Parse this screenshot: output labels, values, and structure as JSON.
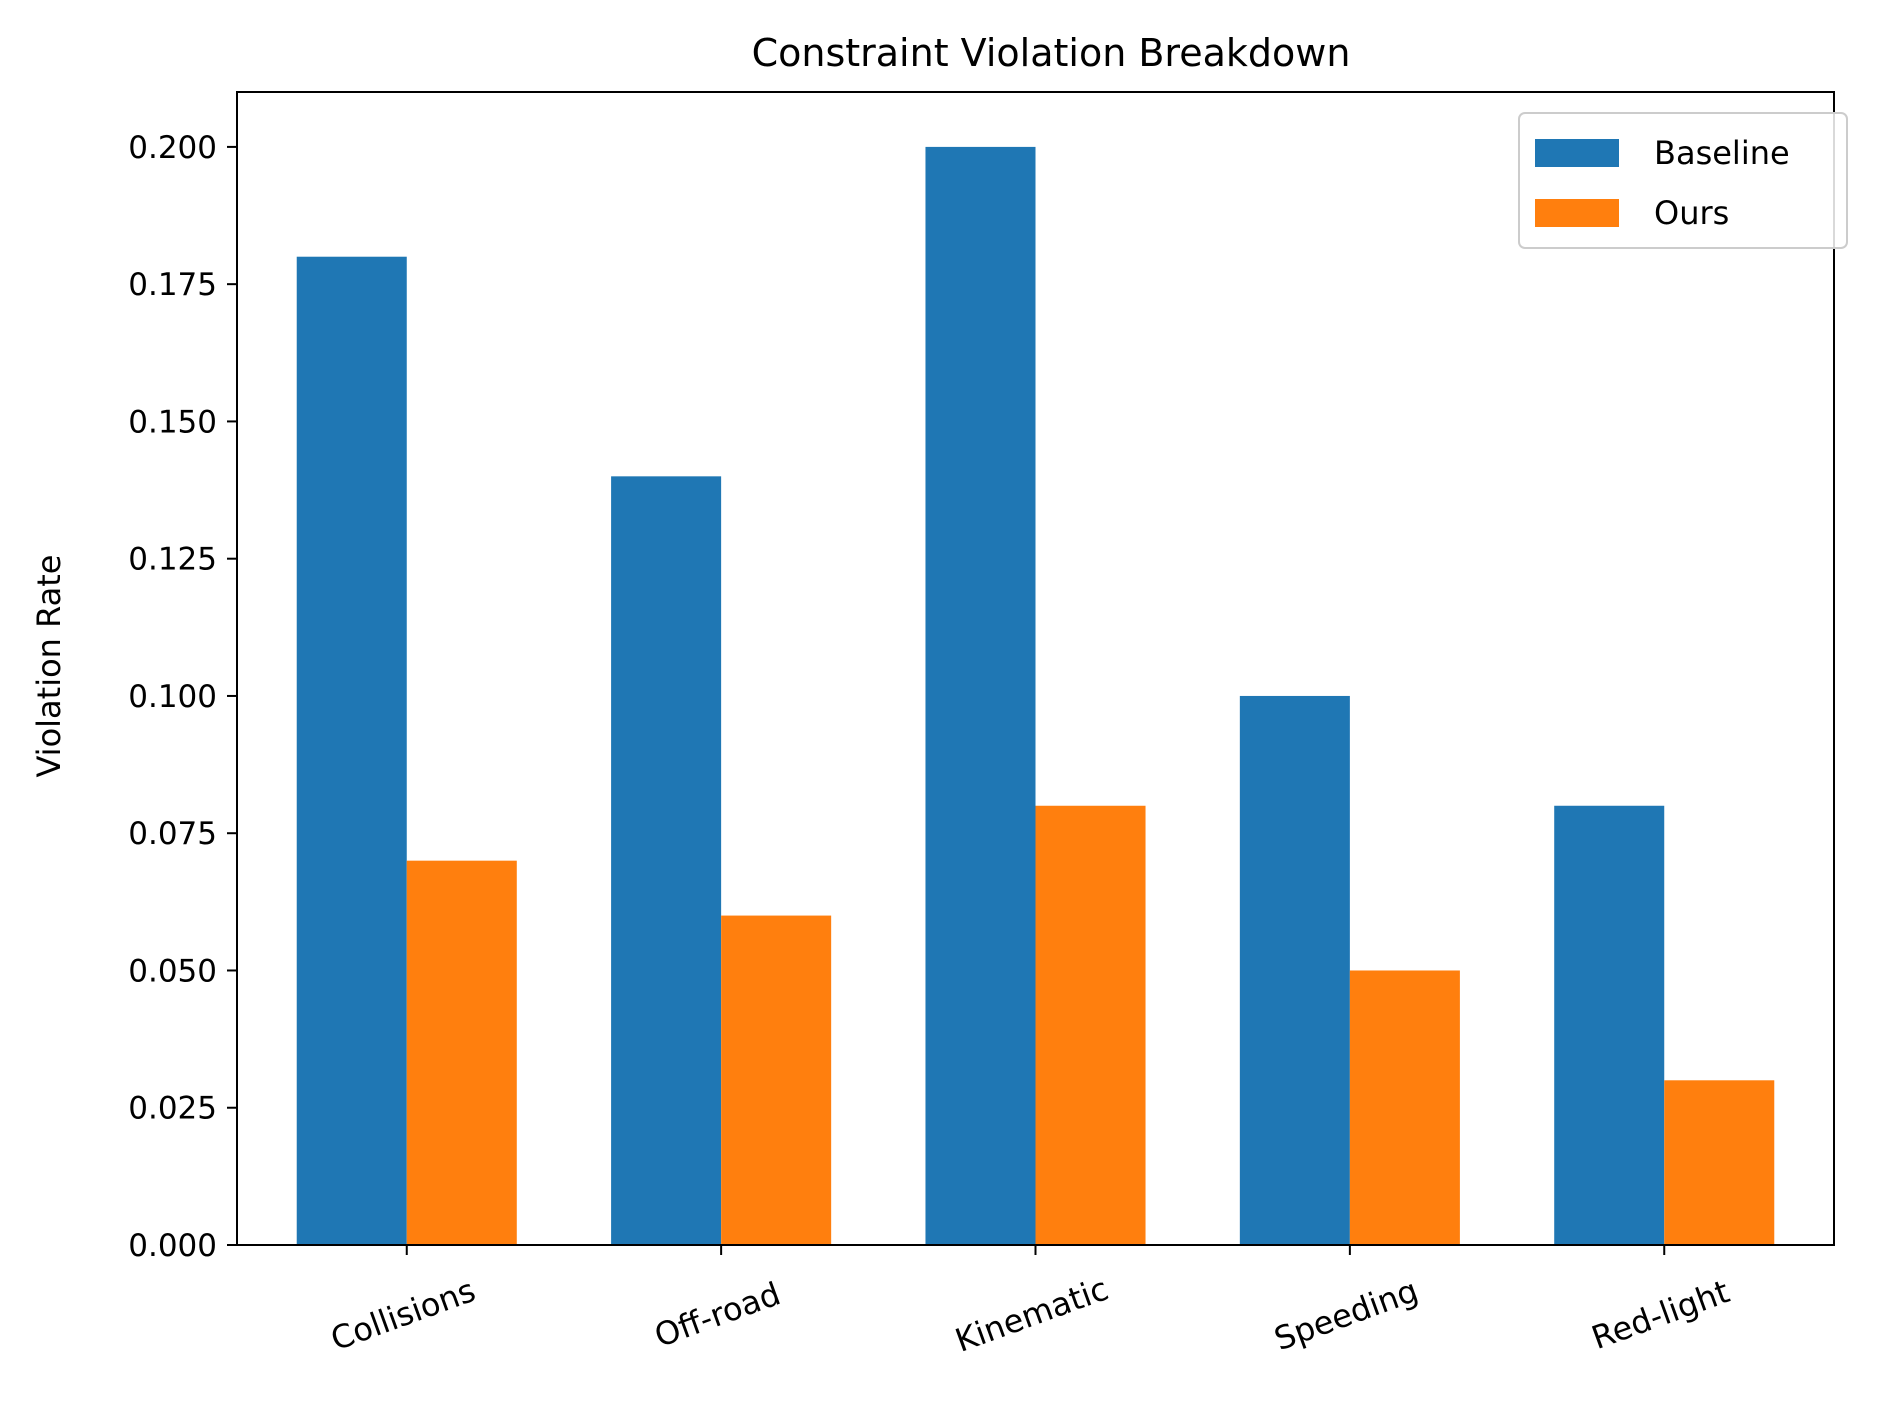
{
  "chart_data": {
    "type": "bar",
    "title": "Constraint Violation Breakdown",
    "xlabel": "",
    "ylabel": "Violation Rate",
    "categories": [
      "Collisions",
      "Off-road",
      "Kinematic",
      "Speeding",
      "Red-light"
    ],
    "series": [
      {
        "name": "Baseline",
        "color": "#1f77b4",
        "values": [
          0.18,
          0.14,
          0.2,
          0.1,
          0.08
        ]
      },
      {
        "name": "Ours",
        "color": "#ff7f0e",
        "values": [
          0.07,
          0.06,
          0.08,
          0.05,
          0.03
        ]
      }
    ],
    "ylim": [
      0,
      0.21
    ],
    "yticks": [
      "0.000",
      "0.025",
      "0.050",
      "0.075",
      "0.100",
      "0.125",
      "0.150",
      "0.175",
      "0.200"
    ],
    "grid": false,
    "legend_position": "top-right",
    "xtick_rotation_deg": -20
  }
}
